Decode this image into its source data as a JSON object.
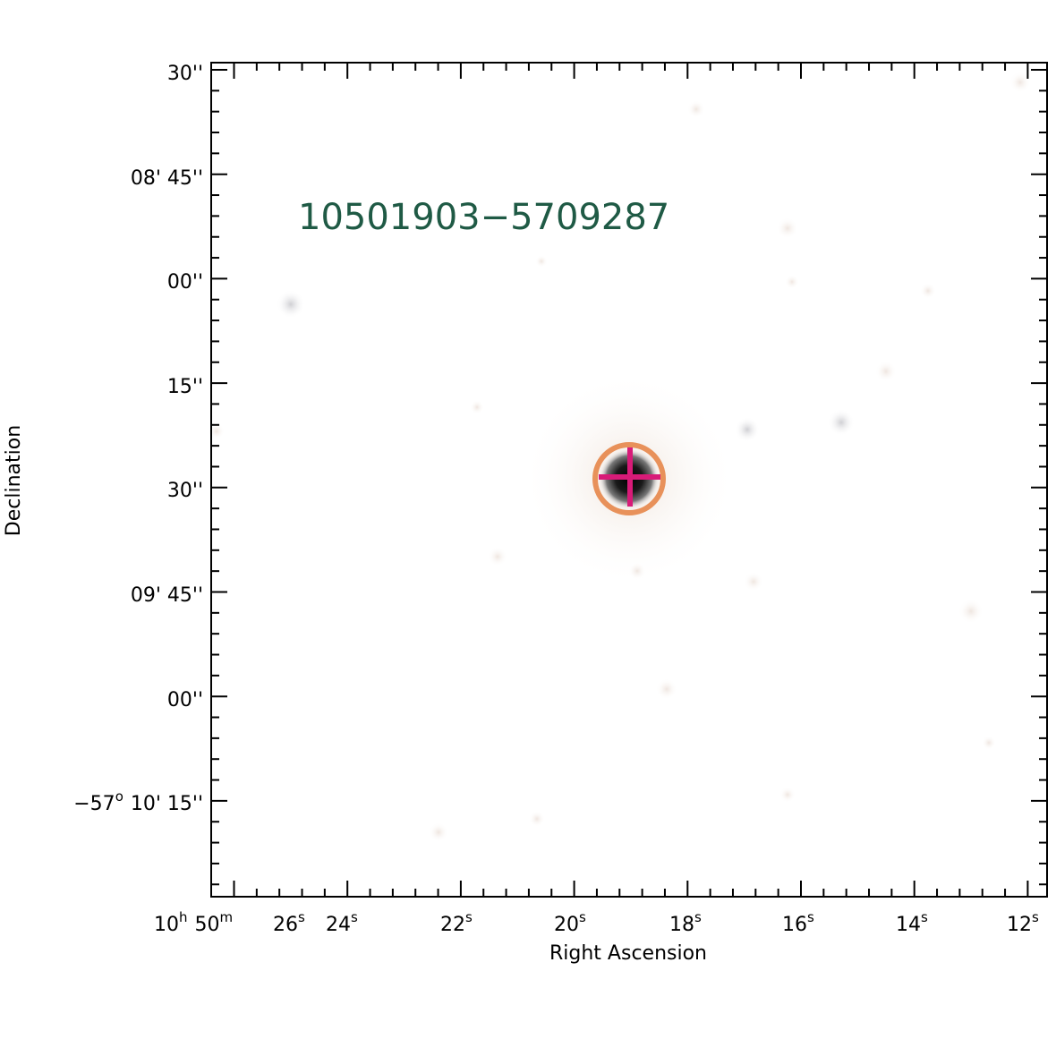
{
  "object_name": "10501903−5709287",
  "x_axis": {
    "label": "Right Ascension",
    "prefix": {
      "hours": "10",
      "hours_unit": "h",
      "minutes": "50",
      "minutes_unit": "m"
    },
    "ticks": [
      {
        "value": "26",
        "unit": "s"
      },
      {
        "value": "24",
        "unit": "s"
      },
      {
        "value": "22",
        "unit": "s"
      },
      {
        "value": "20",
        "unit": "s"
      },
      {
        "value": "18",
        "unit": "s"
      },
      {
        "value": "16",
        "unit": "s"
      },
      {
        "value": "14",
        "unit": "s"
      },
      {
        "value": "12",
        "unit": "s"
      }
    ]
  },
  "y_axis": {
    "label": "Declination",
    "ticks": [
      {
        "text": "30''"
      },
      {
        "text": "08' 45''"
      },
      {
        "text": "00''"
      },
      {
        "text": "15''"
      },
      {
        "text": "30''"
      },
      {
        "text": "09' 45''"
      },
      {
        "text": "00''"
      },
      {
        "deg": "−57",
        "deg_unit": "o",
        "text": "10' 15''"
      }
    ]
  },
  "colors": {
    "title": "#1f5a45",
    "circle": "#e8915a",
    "crosshair": "#d81b78",
    "frame": "#000000"
  }
}
